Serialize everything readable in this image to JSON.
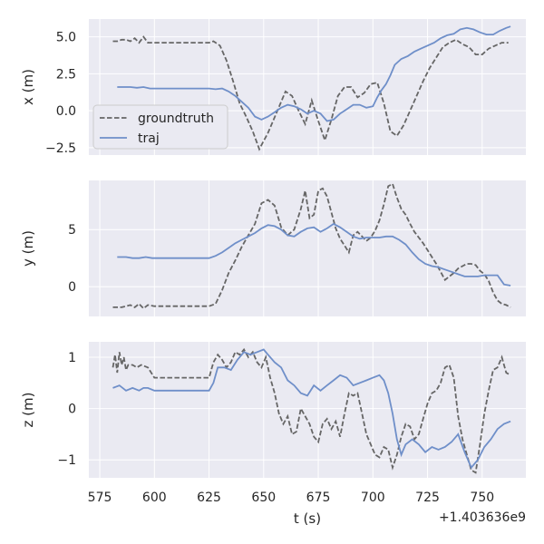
{
  "chart_data": {
    "type": "line",
    "layout": "3 stacked subplots sharing x axis",
    "xlabel": "t (s)",
    "xlim": [
      570,
      770
    ],
    "x_ticks": [
      575,
      600,
      625,
      650,
      675,
      700,
      725,
      750
    ],
    "x_tick_labels": [
      "575",
      "600",
      "625",
      "650",
      "675",
      "700",
      "725",
      "750"
    ],
    "x_offset_text": "+1.403636e9",
    "legend": {
      "location": "center-left of top subplot",
      "entries": [
        {
          "label": "groundtruth",
          "style": "dashed",
          "color": "#666666"
        },
        {
          "label": "traj",
          "style": "solid",
          "color": "#6f8fc9"
        }
      ]
    },
    "subplots": [
      {
        "id": "x",
        "ylabel": "x (m)",
        "ylim": [
          -3.0,
          6.2
        ],
        "y_ticks": [
          -2.5,
          0.0,
          2.5,
          5.0
        ],
        "y_tick_labels": [
          "−2.5",
          "0.0",
          "2.5",
          "5.0"
        ],
        "series": [
          {
            "name": "groundtruth",
            "style": "dashed",
            "x": [
              581,
              583,
              585,
              587,
              589,
              591,
              593,
              595,
              597,
              600,
              605,
              610,
              615,
              620,
              625,
              627,
              630,
              633,
              636,
              639,
              642,
              645,
              648,
              652,
              656,
              660,
              663,
              666,
              669,
              672,
              675,
              678,
              681,
              684,
              687,
              690,
              693,
              696,
              699,
              702,
              705,
              708,
              711,
              714,
              717,
              720,
              723,
              726,
              729,
              732,
              735,
              738,
              741,
              744,
              747,
              750,
              753,
              756,
              759,
              762
            ],
            "y": [
              4.7,
              4.7,
              4.8,
              4.8,
              4.7,
              4.9,
              4.6,
              5.0,
              4.6,
              4.6,
              4.6,
              4.6,
              4.6,
              4.6,
              4.6,
              4.7,
              4.4,
              3.4,
              2.0,
              0.5,
              -0.4,
              -1.4,
              -2.6,
              -1.5,
              -0.1,
              1.3,
              1.0,
              0.0,
              -0.9,
              0.7,
              -0.7,
              -2.0,
              -0.6,
              1.0,
              1.6,
              1.6,
              0.9,
              1.2,
              1.8,
              1.9,
              0.5,
              -1.4,
              -1.7,
              -1.0,
              0.0,
              1.0,
              2.0,
              2.9,
              3.6,
              4.3,
              4.6,
              4.8,
              4.5,
              4.3,
              3.8,
              3.8,
              4.2,
              4.4,
              4.6,
              4.6
            ]
          },
          {
            "name": "traj",
            "style": "solid",
            "x": [
              583,
              586,
              589,
              592,
              595,
              598,
              601,
              605,
              610,
              615,
              620,
              625,
              628,
              631,
              634,
              637,
              640,
              643,
              646,
              649,
              652,
              655,
              658,
              661,
              664,
              667,
              670,
              673,
              676,
              679,
              682,
              685,
              688,
              691,
              694,
              697,
              700,
              702,
              704,
              706,
              708,
              710,
              713,
              716,
              719,
              722,
              725,
              728,
              731,
              734,
              737,
              740,
              743,
              746,
              749,
              752,
              755,
              758,
              761,
              763
            ],
            "y": [
              1.6,
              1.6,
              1.6,
              1.55,
              1.6,
              1.5,
              1.5,
              1.5,
              1.5,
              1.5,
              1.5,
              1.5,
              1.45,
              1.5,
              1.3,
              1.0,
              0.6,
              0.2,
              -0.4,
              -0.6,
              -0.4,
              -0.1,
              0.2,
              0.4,
              0.3,
              0.1,
              -0.2,
              0.0,
              -0.2,
              -0.7,
              -0.6,
              -0.2,
              0.1,
              0.4,
              0.4,
              0.2,
              0.3,
              0.9,
              1.4,
              1.8,
              2.4,
              3.1,
              3.5,
              3.7,
              4.0,
              4.2,
              4.4,
              4.6,
              4.9,
              5.1,
              5.2,
              5.5,
              5.6,
              5.5,
              5.3,
              5.15,
              5.15,
              5.4,
              5.6,
              5.7
            ]
          }
        ]
      },
      {
        "id": "y",
        "ylabel": "y (m)",
        "ylim": [
          -2.6,
          9.3
        ],
        "y_ticks": [
          0,
          5
        ],
        "y_tick_labels": [
          "0",
          "5"
        ],
        "series": [
          {
            "name": "groundtruth",
            "style": "dashed",
            "x": [
              581,
              583,
              585,
              587,
              589,
              591,
              593,
              595,
              597,
              600,
              605,
              610,
              615,
              620,
              625,
              628,
              631,
              634,
              637,
              640,
              643,
              646,
              649,
              652,
              655,
              658,
              661,
              664,
              667,
              669,
              671,
              673,
              675,
              677,
              679,
              681,
              683,
              685,
              687,
              689,
              691,
              693,
              695,
              697,
              699,
              701,
              703,
              705,
              707,
              709,
              711,
              713,
              715,
              717,
              719,
              721,
              723,
              725,
              727,
              729,
              731,
              733,
              735,
              737,
              739,
              741,
              743,
              745,
              747,
              749,
              751,
              753,
              755,
              757,
              759,
              761,
              763
            ],
            "y": [
              -1.8,
              -1.8,
              -1.8,
              -1.7,
              -1.6,
              -1.8,
              -1.5,
              -1.9,
              -1.6,
              -1.7,
              -1.7,
              -1.7,
              -1.7,
              -1.7,
              -1.7,
              -1.5,
              -0.3,
              1.2,
              2.3,
              3.5,
              4.5,
              5.5,
              7.3,
              7.6,
              7.1,
              5.2,
              4.5,
              5.0,
              6.8,
              8.4,
              6.0,
              6.3,
              8.4,
              8.6,
              7.9,
              6.5,
              5.1,
              4.2,
              3.6,
              3.0,
              4.5,
              4.8,
              4.4,
              4.0,
              4.3,
              4.9,
              5.8,
              7.2,
              8.8,
              9.0,
              7.8,
              6.8,
              6.3,
              5.5,
              4.8,
              4.3,
              3.8,
              3.2,
              2.6,
              2.0,
              1.3,
              0.6,
              0.9,
              1.2,
              1.6,
              1.8,
              2.0,
              2.0,
              1.9,
              1.4,
              1.1,
              0.5,
              -0.5,
              -1.2,
              -1.5,
              -1.6,
              -1.8
            ]
          },
          {
            "name": "traj",
            "style": "solid",
            "x": [
              583,
              587,
              590,
              593,
              596,
              599,
              602,
              605,
              610,
              615,
              620,
              625,
              628,
              631,
              634,
              637,
              640,
              643,
              646,
              649,
              652,
              655,
              658,
              661,
              664,
              667,
              670,
              673,
              676,
              679,
              682,
              685,
              688,
              691,
              694,
              697,
              700,
              703,
              706,
              709,
              712,
              715,
              718,
              721,
              724,
              727,
              730,
              733,
              736,
              739,
              742,
              745,
              748,
              751,
              754,
              757,
              760,
              763
            ],
            "y": [
              2.6,
              2.6,
              2.5,
              2.5,
              2.6,
              2.5,
              2.5,
              2.5,
              2.5,
              2.5,
              2.5,
              2.5,
              2.7,
              3.0,
              3.4,
              3.8,
              4.1,
              4.4,
              4.7,
              5.1,
              5.4,
              5.3,
              5.0,
              4.5,
              4.4,
              4.8,
              5.1,
              5.2,
              4.8,
              5.1,
              5.5,
              5.2,
              4.8,
              4.4,
              4.2,
              4.3,
              4.3,
              4.3,
              4.4,
              4.4,
              4.1,
              3.7,
              3.0,
              2.4,
              2.0,
              1.8,
              1.7,
              1.5,
              1.3,
              1.1,
              0.9,
              0.9,
              0.9,
              1.0,
              1.0,
              1.0,
              0.2,
              0.1
            ]
          }
        ]
      },
      {
        "id": "z",
        "ylabel": "z (m)",
        "ylim": [
          -1.35,
          1.3
        ],
        "y_ticks": [
          -1,
          0,
          1
        ],
        "y_tick_labels": [
          "−1",
          "0",
          "1"
        ],
        "series": [
          {
            "name": "groundtruth",
            "style": "dashed",
            "x": [
              581,
              582,
              583,
              584,
              585,
              586,
              587,
              588,
              590,
              592,
              594,
              597,
              600,
              605,
              610,
              615,
              620,
              625,
              627,
              629,
              631,
              633,
              635,
              637,
              639,
              641,
              643,
              645,
              647,
              649,
              651,
              653,
              655,
              657,
              659,
              661,
              663,
              665,
              667,
              669,
              671,
              673,
              675,
              677,
              679,
              681,
              683,
              685,
              687,
              689,
              691,
              693,
              695,
              697,
              699,
              701,
              703,
              705,
              707,
              709,
              711,
              713,
              715,
              717,
              719,
              721,
              723,
              725,
              727,
              729,
              731,
              733,
              735,
              737,
              739,
              741,
              743,
              745,
              747,
              749,
              751,
              753,
              755,
              757,
              759,
              761,
              763
            ],
            "y": [
              0.8,
              1.05,
              0.7,
              1.1,
              0.85,
              1.0,
              0.75,
              0.85,
              0.85,
              0.8,
              0.85,
              0.8,
              0.6,
              0.6,
              0.6,
              0.6,
              0.6,
              0.6,
              0.9,
              1.05,
              0.95,
              0.8,
              0.9,
              1.1,
              1.05,
              1.15,
              1.0,
              1.1,
              0.9,
              0.8,
              1.0,
              0.6,
              0.3,
              -0.1,
              -0.3,
              -0.15,
              -0.5,
              -0.45,
              0.0,
              -0.15,
              -0.3,
              -0.55,
              -0.65,
              -0.3,
              -0.2,
              -0.4,
              -0.25,
              -0.55,
              -0.1,
              0.3,
              0.25,
              0.3,
              -0.1,
              -0.5,
              -0.7,
              -0.9,
              -0.95,
              -0.75,
              -0.8,
              -1.15,
              -0.9,
              -0.55,
              -0.3,
              -0.35,
              -0.6,
              -0.5,
              -0.2,
              0.1,
              0.3,
              0.35,
              0.5,
              0.8,
              0.85,
              0.6,
              -0.15,
              -0.6,
              -0.9,
              -1.2,
              -1.25,
              -0.7,
              -0.1,
              0.35,
              0.75,
              0.8,
              1.0,
              0.7,
              0.65
            ]
          },
          {
            "name": "traj",
            "style": "solid",
            "x": [
              581,
              584,
              587,
              590,
              593,
              595,
              597,
              600,
              605,
              610,
              615,
              620,
              625,
              627,
              629,
              632,
              635,
              638,
              641,
              644,
              647,
              650,
              652,
              655,
              658,
              661,
              664,
              667,
              670,
              673,
              676,
              679,
              682,
              685,
              688,
              691,
              694,
              697,
              700,
              703,
              705,
              707,
              709,
              711,
              713,
              715,
              718,
              721,
              724,
              727,
              730,
              733,
              736,
              739,
              742,
              745,
              748,
              751,
              754,
              757,
              760,
              763
            ],
            "y": [
              0.4,
              0.45,
              0.35,
              0.4,
              0.35,
              0.4,
              0.4,
              0.35,
              0.35,
              0.35,
              0.35,
              0.35,
              0.35,
              0.5,
              0.8,
              0.8,
              0.75,
              0.95,
              1.1,
              1.05,
              1.1,
              1.15,
              1.05,
              0.9,
              0.8,
              0.55,
              0.45,
              0.3,
              0.25,
              0.45,
              0.35,
              0.45,
              0.55,
              0.65,
              0.6,
              0.45,
              0.5,
              0.55,
              0.6,
              0.65,
              0.55,
              0.3,
              -0.1,
              -0.6,
              -0.9,
              -0.7,
              -0.6,
              -0.7,
              -0.85,
              -0.75,
              -0.8,
              -0.75,
              -0.65,
              -0.5,
              -0.85,
              -1.15,
              -1.0,
              -0.75,
              -0.6,
              -0.4,
              -0.3,
              -0.25
            ]
          }
        ]
      }
    ]
  }
}
